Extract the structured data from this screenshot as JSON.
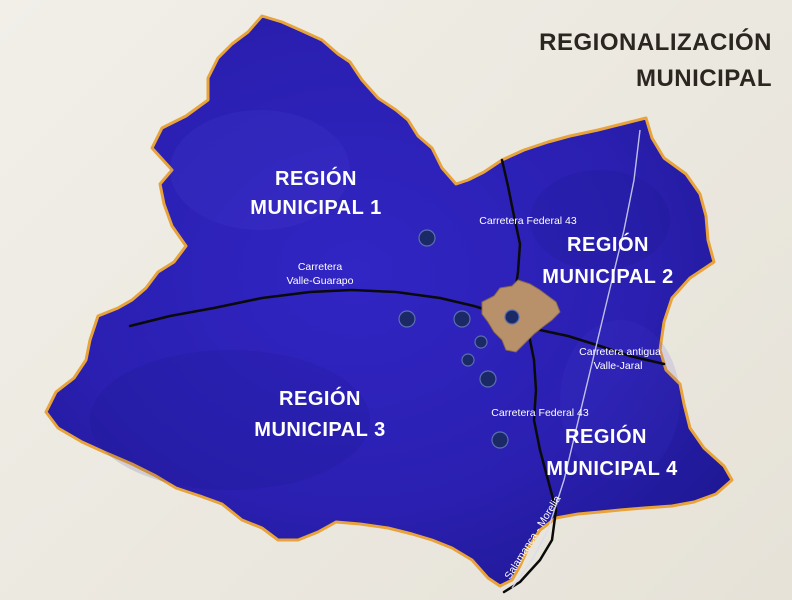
{
  "title": {
    "line1": "REGIONALIZACIÓN",
    "line2": "MUNICIPAL"
  },
  "regions": [
    {
      "line1": "REGIÓN",
      "line2": "MUNICIPAL 1"
    },
    {
      "line1": "REGIÓN",
      "line2": "MUNICIPAL 2"
    },
    {
      "line1": "REGIÓN",
      "line2": "MUNICIPAL 3"
    },
    {
      "line1": "REGIÓN",
      "line2": "MUNICIPAL 4"
    }
  ],
  "roads": {
    "federal43_north": "Carretera Federal 43",
    "valle_guarapo_line1": "Carretera",
    "valle_guarapo_line2": "Valle-Guarapo",
    "antigua_line1": "Carretera antigua",
    "antigua_line2": "Valle-Jaral",
    "federal43_south": "Carretera Federal 43",
    "salamanca_morelia": "Salamanca - Morelia"
  },
  "colors": {
    "territory": "#2a1fb0",
    "territory_dark": "#1c168c",
    "border": "#e8a33a",
    "urban": "#b8916a",
    "roads": "#111111",
    "localities": "#1b2a66"
  }
}
